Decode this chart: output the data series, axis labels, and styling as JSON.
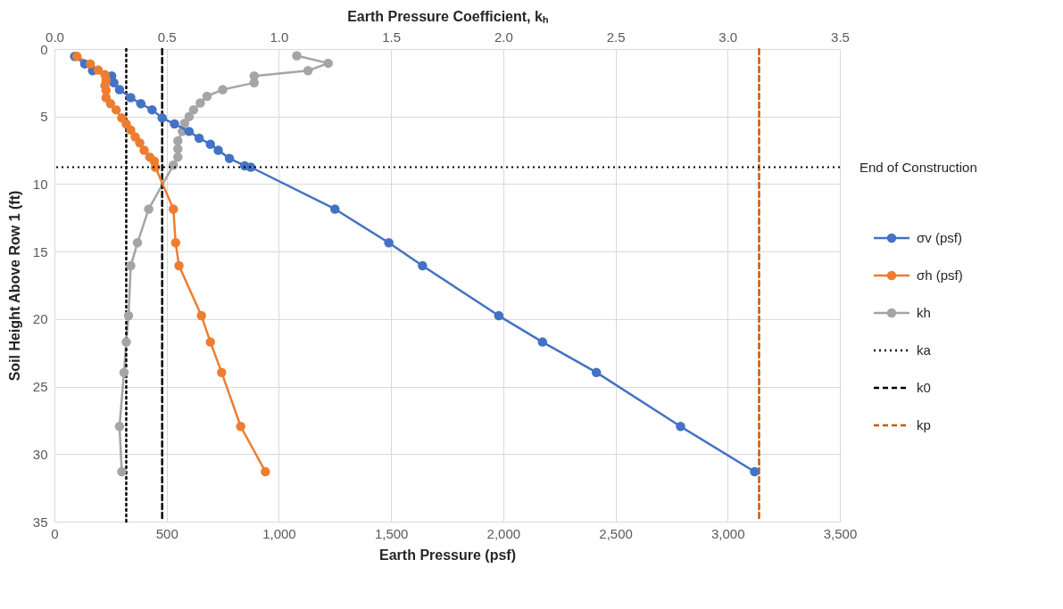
{
  "chart_data": {
    "type": "line",
    "xlabel": "Earth Pressure (psf)",
    "x2label": "Earth Pressure Coefficient, kₕ",
    "ylabel": "Soil Height Above Row 1 (ft)",
    "xlim": [
      0,
      3500
    ],
    "xticks": [
      0,
      500,
      {
        "value": 1000,
        "label": "1,000"
      },
      {
        "value": 1500,
        "label": "1,500"
      },
      {
        "value": 2000,
        "label": "2,000"
      },
      {
        "value": 2500,
        "label": "2,500"
      },
      {
        "value": 3000,
        "label": "3,000"
      },
      {
        "value": 3500,
        "label": "3,500"
      }
    ],
    "x2lim": [
      0,
      3.5
    ],
    "x2ticks": [
      {
        "value": 0,
        "label": "0.0"
      },
      0.5,
      {
        "value": 1,
        "label": "1.0"
      },
      1.5,
      {
        "value": 2,
        "label": "2.0"
      },
      2.5,
      {
        "value": 3,
        "label": "3.0"
      },
      3.5
    ],
    "ylim": [
      35,
      0
    ],
    "yticks": [
      0,
      5,
      10,
      15,
      20,
      25,
      30,
      35
    ],
    "grid": true,
    "legend": "right",
    "marker": "circle",
    "line_style": "solid",
    "series": [
      {
        "name": "σv (psf)",
        "color": "#4472c4",
        "x": [
          90,
          135,
          170,
          255,
          265,
          290,
          340,
          385,
          435,
          480,
          535,
          600,
          645,
          695,
          730,
          780,
          848,
          875,
          1250,
          1490,
          1640,
          1980,
          2175,
          2415,
          2790,
          3120
        ],
        "values": [
          0.55,
          1.1,
          1.6,
          2.0,
          2.5,
          3.0,
          3.6,
          4.05,
          4.5,
          5.1,
          5.55,
          6.1,
          6.6,
          7.05,
          7.5,
          8.1,
          8.65,
          8.75,
          11.85,
          14.35,
          16.05,
          19.75,
          21.7,
          23.95,
          27.95,
          31.3
        ]
      },
      {
        "name": "σh (psf)",
        "color": "#ed7d31",
        "x": [
          100,
          160,
          195,
          225,
          230,
          225,
          230,
          230,
          250,
          275,
          300,
          320,
          340,
          360,
          380,
          400,
          425,
          445,
          450,
          530,
          540,
          555,
          655,
          695,
          745,
          830,
          940
        ],
        "values": [
          0.55,
          1.1,
          1.55,
          1.9,
          2.3,
          2.7,
          3.05,
          3.6,
          4.05,
          4.5,
          5.1,
          5.55,
          6.0,
          6.5,
          6.95,
          7.5,
          8.0,
          8.3,
          8.75,
          11.85,
          14.35,
          16.05,
          19.75,
          21.7,
          23.95,
          27.95,
          31.3
        ]
      },
      {
        "name": "kh",
        "color": "#a5a5a5",
        "axis": "x2",
        "x": [
          1.08,
          1.22,
          1.13,
          0.89,
          0.89,
          0.75,
          0.68,
          0.65,
          0.62,
          0.6,
          0.58,
          0.57,
          0.55,
          0.55,
          0.55,
          0.53,
          0.42,
          0.37,
          0.34,
          0.33,
          0.32,
          0.31,
          0.29,
          0.3
        ],
        "values": [
          0.5,
          1.05,
          1.6,
          2.0,
          2.5,
          3.0,
          3.5,
          4.0,
          4.5,
          5.0,
          5.5,
          6.1,
          6.8,
          7.4,
          8.0,
          8.6,
          11.85,
          14.35,
          16.05,
          19.75,
          21.7,
          23.95,
          27.95,
          31.3
        ]
      },
      {
        "name": "ka",
        "color": "#000000",
        "axis": "x2",
        "marker": "none",
        "line_style": "dotted",
        "x": [
          0.32,
          0.32
        ],
        "values": [
          0,
          35
        ]
      },
      {
        "name": "k0",
        "color": "#000000",
        "axis": "x2",
        "marker": "none",
        "line_style": "dashed",
        "x": [
          0.48,
          0.48
        ],
        "values": [
          0,
          35
        ]
      },
      {
        "name": "kp",
        "color": "#c55a11",
        "axis": "x2",
        "marker": "none",
        "line_style": "dashed",
        "x": [
          3.14,
          3.14
        ],
        "values": [
          0,
          35
        ]
      }
    ],
    "ref_lines": [
      {
        "axis": "y",
        "value": 8.75,
        "label": "End of Construction",
        "color": "#000000",
        "line_style": "dotted"
      }
    ]
  }
}
